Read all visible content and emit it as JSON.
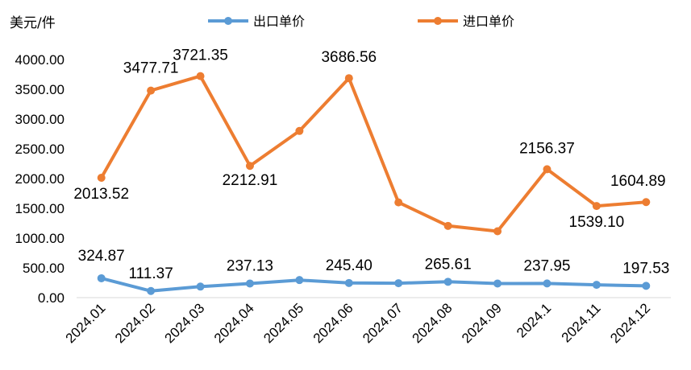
{
  "chart_data": {
    "type": "line",
    "unit_label": "美元/件",
    "categories": [
      "2024.01",
      "2024.02",
      "2024.03",
      "2024.04",
      "2024.05",
      "2024.06",
      "2024.07",
      "2024.08",
      "2024.09",
      "2024.1",
      "2024.11",
      "2024.12"
    ],
    "series": [
      {
        "name": "出口单价",
        "color": "#5B9BD5",
        "values": [
          324.87,
          111.37,
          185.0,
          237.13,
          295.0,
          245.4,
          242.0,
          265.61,
          237.0,
          237.95,
          215.0,
          197.53
        ],
        "labels": [
          "324.87",
          "111.37",
          "",
          "237.13",
          "",
          "245.40",
          "",
          "265.61",
          "",
          "237.95",
          "",
          "197.53"
        ]
      },
      {
        "name": "进口单价",
        "color": "#ED7D31",
        "values": [
          2013.52,
          3477.71,
          3721.35,
          2212.91,
          2800.0,
          3686.56,
          1600.0,
          1205.0,
          1115.0,
          2156.37,
          1539.1,
          1604.89
        ],
        "labels": [
          "2013.52",
          "3477.71",
          "3721.35",
          "2212.91",
          "",
          "3686.56",
          "",
          "",
          "",
          "2156.37",
          "1539.10",
          "1604.89"
        ]
      }
    ],
    "y_ticks": [
      "0.00",
      "500.00",
      "1000.00",
      "1500.00",
      "2000.00",
      "2500.00",
      "3000.00",
      "3500.00",
      "4000.00"
    ],
    "ylim": [
      0,
      4000
    ],
    "legend_position": "top",
    "grid": false
  }
}
